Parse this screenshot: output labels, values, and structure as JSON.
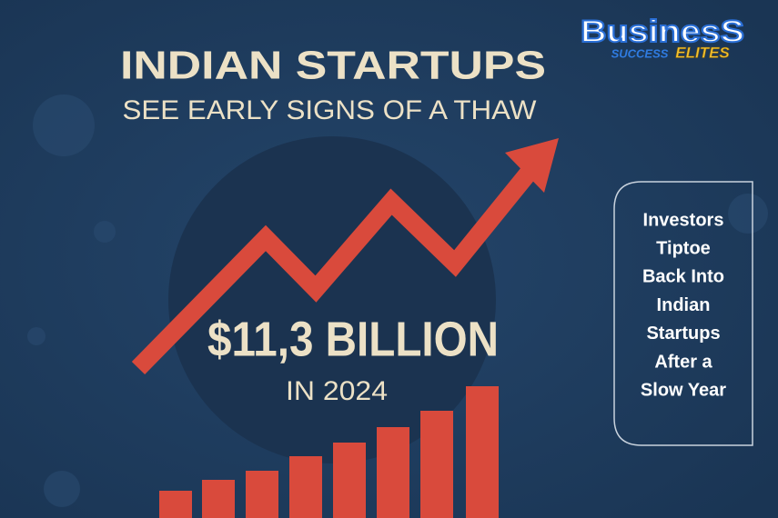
{
  "header": {
    "title": "INDIAN STARTUPS",
    "subtitle": "SEE EARLY SIGNS OF A THAW"
  },
  "logo": {
    "name": "BusinesS",
    "tag_left": "SUCCESS",
    "tag_right": "ELITES"
  },
  "headline": {
    "amount": "$11,3 BILLION",
    "year": "IN 2024"
  },
  "sidebar": {
    "lines": [
      "Investors",
      "Tiptoe",
      "Back Into",
      "Indian",
      "Startups",
      "After a",
      "Slow Year"
    ]
  }
}
